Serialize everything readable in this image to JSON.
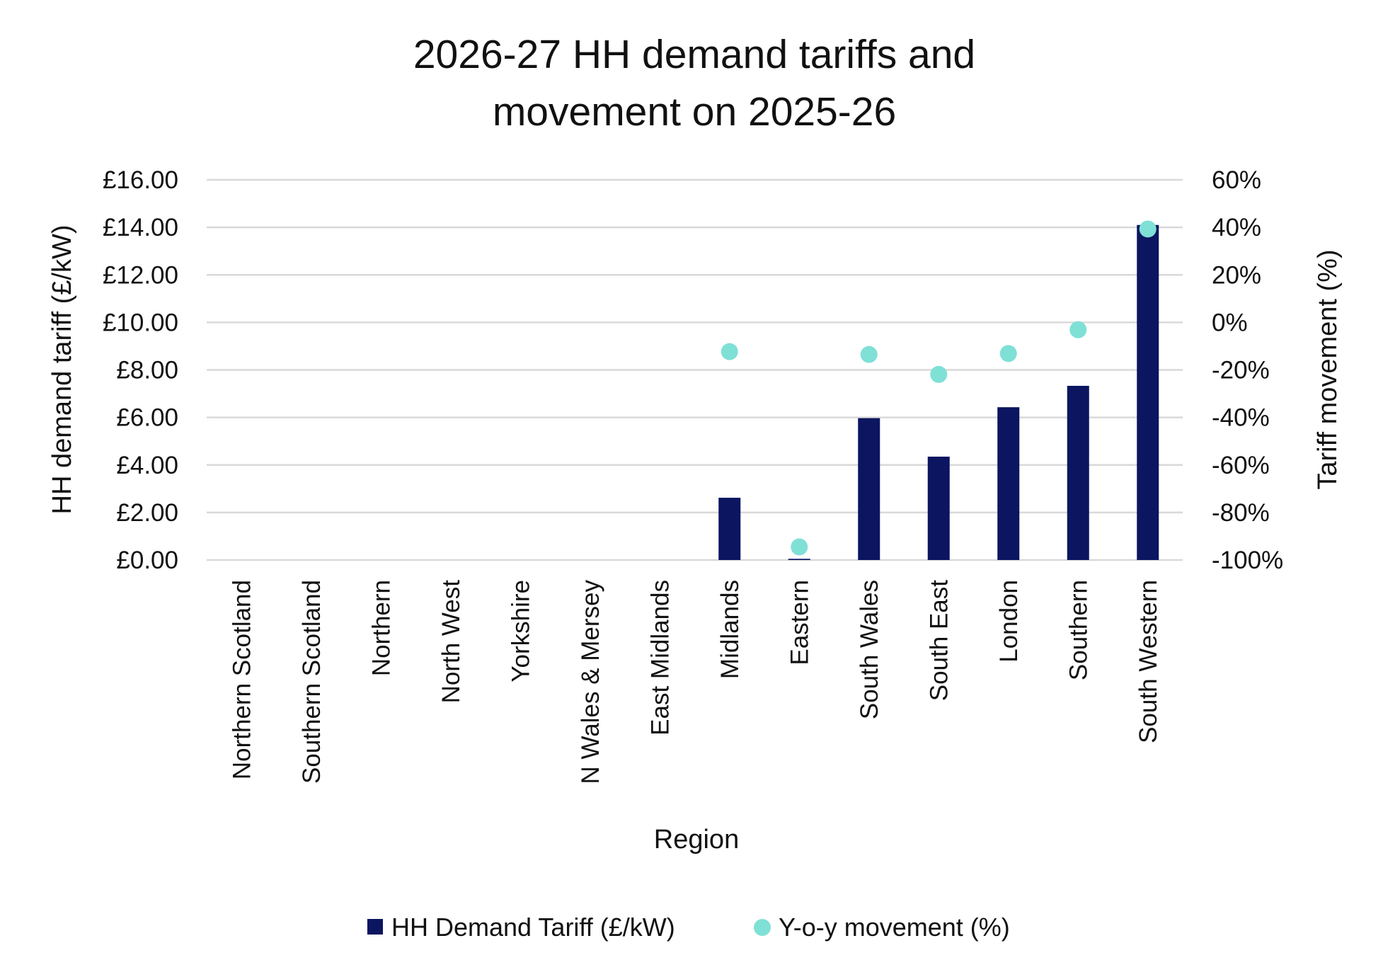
{
  "chart_data": {
    "type": "bar+scatter",
    "title": [
      "2026-27 HH demand tariffs and",
      "movement on 2025-26"
    ],
    "xlabel": "Region",
    "ylabel": "HH demand tariff (£/kW)",
    "y2label": "Tariff movement (%)",
    "ylim": [
      0,
      16
    ],
    "y2lim": [
      -100,
      60
    ],
    "yticks": [
      "£0.00",
      "£2.00",
      "£4.00",
      "£6.00",
      "£8.00",
      "£10.00",
      "£12.00",
      "£14.00",
      "£16.00"
    ],
    "y2ticks": [
      "-100%",
      "-80%",
      "-60%",
      "-40%",
      "-20%",
      "0%",
      "20%",
      "40%",
      "60%"
    ],
    "grid": true,
    "legend_position": "bottom",
    "categories": [
      "Northern Scotland",
      "Southern Scotland",
      "Northern",
      "North West",
      "Yorkshire",
      "N Wales & Mersey",
      "East Midlands",
      "Midlands",
      "Eastern",
      "South Wales",
      "South East",
      "London",
      "Southern",
      "South Western"
    ],
    "series": [
      {
        "name": "HH Demand Tariff (£/kW)",
        "type": "bar",
        "axis": "left",
        "color": "#0b1560",
        "values": [
          null,
          null,
          null,
          null,
          null,
          null,
          null,
          2.62,
          0.05,
          5.97,
          4.35,
          6.43,
          7.33,
          14.1
        ]
      },
      {
        "name": "Y-o-y movement (%)",
        "type": "scatter",
        "axis": "right",
        "color": "#7fe0d6",
        "values": [
          null,
          null,
          null,
          null,
          null,
          null,
          null,
          -12.3,
          -94.5,
          -13.5,
          -21.9,
          -13.1,
          -3.1,
          39.3
        ]
      }
    ]
  }
}
